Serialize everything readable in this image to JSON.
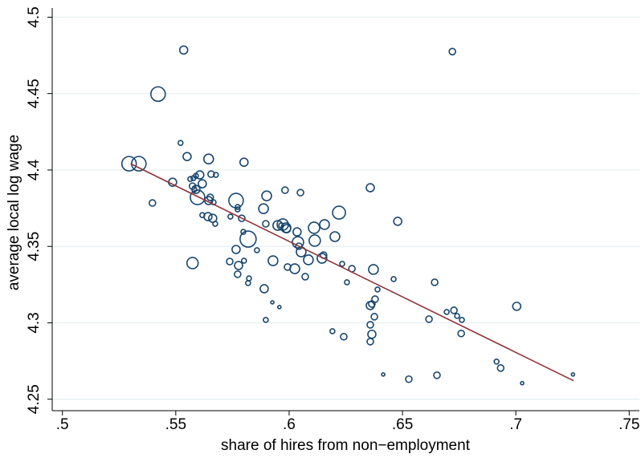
{
  "chart_data": {
    "type": "scatter",
    "xlabel": "share of hires from non−employment",
    "ylabel": "average local log wage",
    "xlim": [
      0.4955,
      0.7545
    ],
    "ylim": [
      4.2425,
      4.506
    ],
    "xticks": [
      {
        "value": 0.5,
        "label": ".5"
      },
      {
        "value": 0.55,
        "label": ".55"
      },
      {
        "value": 0.6,
        "label": ".6"
      },
      {
        "value": 0.65,
        "label": ".65"
      },
      {
        "value": 0.7,
        "label": ".7"
      },
      {
        "value": 0.75,
        "label": ".75"
      }
    ],
    "yticks": [
      4.25,
      4.3,
      4.35,
      4.4,
      4.45,
      4.5
    ],
    "grid": true,
    "series": [
      {
        "color": "#1a476f",
        "x": [
          0.5535,
          0.5422,
          0.672,
          0.5294,
          0.5337,
          0.5521,
          0.555,
          0.5645,
          0.5486,
          0.5397,
          0.5606,
          0.5578,
          0.5564,
          0.5589,
          0.5656,
          0.5677,
          0.5801,
          0.5582,
          0.5617,
          0.5574,
          0.5589,
          0.5652,
          0.5645,
          0.5596,
          0.5667,
          0.5766,
          0.5901,
          0.5982,
          0.605,
          0.6358,
          0.5773,
          0.5773,
          0.5887,
          0.622,
          0.6479,
          0.5617,
          0.5642,
          0.5663,
          0.5674,
          0.5741,
          0.5791,
          0.5897,
          0.595,
          0.5972,
          0.5986,
          0.5989,
          0.5965,
          0.6035,
          0.611,
          0.6156,
          0.5798,
          0.5819,
          0.6202,
          0.6113,
          0.6039,
          0.6043,
          0.5766,
          0.5858,
          0.6053,
          0.6085,
          0.6145,
          0.6152,
          0.5574,
          0.5738,
          0.5801,
          0.5929,
          0.5993,
          0.6025,
          0.6234,
          0.6277,
          0.6372,
          0.5777,
          0.5773,
          0.5823,
          0.5819,
          0.6071,
          0.6255,
          0.6461,
          0.6642,
          0.639,
          0.589,
          0.6379,
          0.6358,
          0.6365,
          0.5926,
          0.5957,
          0.5897,
          0.6695,
          0.6727,
          0.6741,
          0.6762,
          0.7004,
          0.6617,
          0.6376,
          0.6358,
          0.6365,
          0.6191,
          0.6241,
          0.6358,
          0.6915,
          0.6933,
          0.6415,
          0.6652,
          0.6528,
          0.7028,
          0.7252,
          0.6759
        ],
        "values": [
          4.4785,
          4.4497,
          4.4775,
          4.4041,
          4.4041,
          4.4177,
          4.4088,
          4.4072,
          4.392,
          4.3784,
          4.3968,
          4.3947,
          4.3941,
          4.3962,
          4.3973,
          4.3968,
          4.4051,
          4.3873,
          4.391,
          4.3894,
          4.3873,
          4.3821,
          4.38,
          4.3821,
          4.3789,
          4.38,
          4.3831,
          4.3868,
          4.3852,
          4.3884,
          4.3758,
          4.3742,
          4.3747,
          4.3721,
          4.3664,
          4.3705,
          4.3695,
          4.3684,
          4.3648,
          4.3695,
          4.3684,
          4.3648,
          4.3637,
          4.3643,
          4.3622,
          4.3616,
          4.3637,
          4.3595,
          4.3622,
          4.3643,
          4.3595,
          4.3548,
          4.3564,
          4.3538,
          4.3527,
          4.3501,
          4.348,
          4.3475,
          4.3464,
          4.3412,
          4.3422,
          4.3443,
          4.3391,
          4.3401,
          4.3406,
          4.3406,
          4.3365,
          4.3354,
          4.3386,
          4.3354,
          4.3349,
          4.3375,
          4.3318,
          4.3291,
          4.326,
          4.3302,
          4.3265,
          4.3286,
          4.3265,
          4.3218,
          4.3223,
          4.3155,
          4.3113,
          4.3123,
          4.3134,
          4.3103,
          4.3019,
          4.3071,
          4.3082,
          4.3045,
          4.3019,
          4.3108,
          4.3024,
          4.304,
          4.2987,
          4.2925,
          4.2945,
          4.2909,
          4.2877,
          4.2746,
          4.2704,
          4.2662,
          4.2657,
          4.2631,
          4.2605,
          4.2662,
          4.293
        ],
        "sizes": [
          5,
          9,
          4,
          9,
          9,
          3,
          5,
          6,
          5,
          4,
          5,
          3,
          3,
          3,
          4,
          3,
          5,
          3,
          5,
          4,
          5,
          4,
          5,
          9,
          3,
          9,
          6,
          4,
          4,
          5,
          3,
          3,
          6,
          8,
          5,
          3,
          5,
          5,
          3,
          3,
          4,
          4,
          6,
          7,
          6,
          5,
          3,
          5,
          7,
          6,
          3,
          10,
          6,
          7,
          7,
          4,
          5,
          3,
          6,
          6,
          6,
          4,
          7,
          4,
          3,
          6,
          4,
          6,
          3,
          4,
          6,
          5,
          4,
          3,
          3,
          4,
          3,
          3,
          4,
          3,
          5,
          4,
          5,
          4,
          2,
          2,
          3,
          3,
          4,
          3,
          3,
          5,
          4,
          4,
          4,
          5,
          3,
          4,
          4,
          3,
          4,
          2,
          4,
          4,
          2,
          2,
          4
        ]
      }
    ],
    "fit_line": {
      "color": "#90353b",
      "x": [
        0.5301,
        0.7255
      ],
      "values": [
        4.4041,
        4.2621
      ]
    }
  }
}
